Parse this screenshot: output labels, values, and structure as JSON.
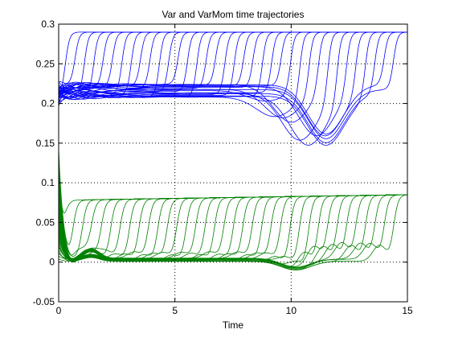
{
  "chart_data": {
    "type": "line",
    "title": "Var and VarMom time trajectories",
    "xlabel": "Time",
    "ylabel": "",
    "xlim": [
      0,
      15
    ],
    "ylim": [
      -0.05,
      0.3
    ],
    "x_ticks": [
      0,
      5,
      10,
      15
    ],
    "x_tick_labels": [
      "0",
      "5",
      "10",
      "15"
    ],
    "y_ticks": [
      -0.05,
      0,
      0.05,
      0.1,
      0.15,
      0.2,
      0.25,
      0.3
    ],
    "y_tick_labels": [
      "-0.05",
      "0",
      "0.05",
      "0.1",
      "0.15",
      "0.2",
      "0.25",
      "0.3"
    ],
    "grid": true,
    "legend": "none",
    "curves_per_family": 36,
    "families": [
      {
        "color": "#0000ff",
        "start_range": [
          0.2,
          0.225
        ],
        "plateau": [
          0.215,
          0.225
        ],
        "upper_envelope": 0.29,
        "dip_minimum": {
          "x": 11.5,
          "y": 0.16
        },
        "end_range": [
          0.215,
          0.29
        ]
      },
      {
        "color": "#008000",
        "start_range": [
          0.0,
          0.14
        ],
        "plateau": [
          0.0,
          0.005
        ],
        "upper_envelope": 0.08,
        "dip_minimum": {
          "x": 10.2,
          "y": -0.01
        },
        "end_range": [
          0.0,
          0.085
        ]
      }
    ]
  }
}
